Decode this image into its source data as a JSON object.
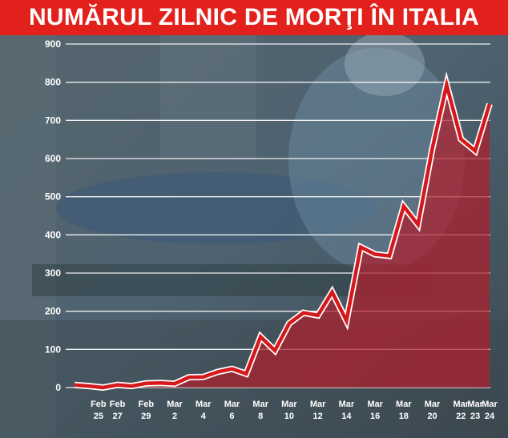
{
  "title": "NUMĂRUL ZILNIC DE MORŢI ÎN ITALIA",
  "colors": {
    "title_bg": "#e2211c",
    "line": "#d4181c",
    "area": "#b01e2c",
    "grid": "#ffffff",
    "text": "#ffffff"
  },
  "chart_data": {
    "type": "area",
    "title": "NUMĂRUL ZILNIC DE MORŢI ÎN ITALIA",
    "xlabel": "",
    "ylabel": "",
    "ylim": [
      0,
      900
    ],
    "yticks": [
      "0",
      "100",
      "200",
      "300",
      "400",
      "500",
      "600",
      "700",
      "800",
      "900"
    ],
    "grid": true,
    "x": [
      "Feb 24",
      "Feb 25",
      "Feb 26",
      "Feb 27",
      "Feb 28",
      "Feb 29",
      "Mar 1",
      "Mar 2",
      "Mar 3",
      "Mar 4",
      "Mar 5",
      "Mar 6",
      "Mar 7",
      "Mar 8",
      "Mar 9",
      "Mar 10",
      "Mar 11",
      "Mar 12",
      "Mar 13",
      "Mar 14",
      "Mar 15",
      "Mar 16",
      "Mar 17",
      "Mar 18",
      "Mar 19",
      "Mar 20",
      "Mar 21",
      "Mar 22",
      "Mar 23",
      "Mar 24"
    ],
    "x_tick_labels": [
      {
        "top": "Feb",
        "bottom": "25"
      },
      {
        "top": "Feb",
        "bottom": "27"
      },
      {
        "top": "Feb",
        "bottom": "29"
      },
      {
        "top": "Mar",
        "bottom": "2"
      },
      {
        "top": "Mar",
        "bottom": "4"
      },
      {
        "top": "Mar",
        "bottom": "6"
      },
      {
        "top": "Mar",
        "bottom": "8"
      },
      {
        "top": "Mar",
        "bottom": "10"
      },
      {
        "top": "Mar",
        "bottom": "12"
      },
      {
        "top": "Mar",
        "bottom": "14"
      },
      {
        "top": "Mar",
        "bottom": "16"
      },
      {
        "top": "Mar",
        "bottom": "18"
      },
      {
        "top": "Mar",
        "bottom": "20"
      },
      {
        "top": "Mar",
        "bottom": "22"
      },
      {
        "top": "Mar",
        "bottom": "23"
      },
      {
        "top": "Mar",
        "bottom": "24"
      }
    ],
    "x_tick_dates": [
      "Feb 25",
      "Feb 27",
      "Feb 29",
      "Mar 2",
      "Mar 4",
      "Mar 6",
      "Mar 8",
      "Mar 10",
      "Mar 12",
      "Mar 14",
      "Mar 16",
      "Mar 18",
      "Mar 20",
      "Mar 22",
      "Mar 23",
      "Mar 24"
    ],
    "y": [
      7,
      4,
      0,
      7,
      4,
      11,
      12,
      10,
      27,
      28,
      41,
      49,
      36,
      133,
      97,
      168,
      196,
      189,
      250,
      175,
      368,
      349,
      345,
      475,
      427,
      627,
      793,
      651,
      620,
      743
    ]
  }
}
